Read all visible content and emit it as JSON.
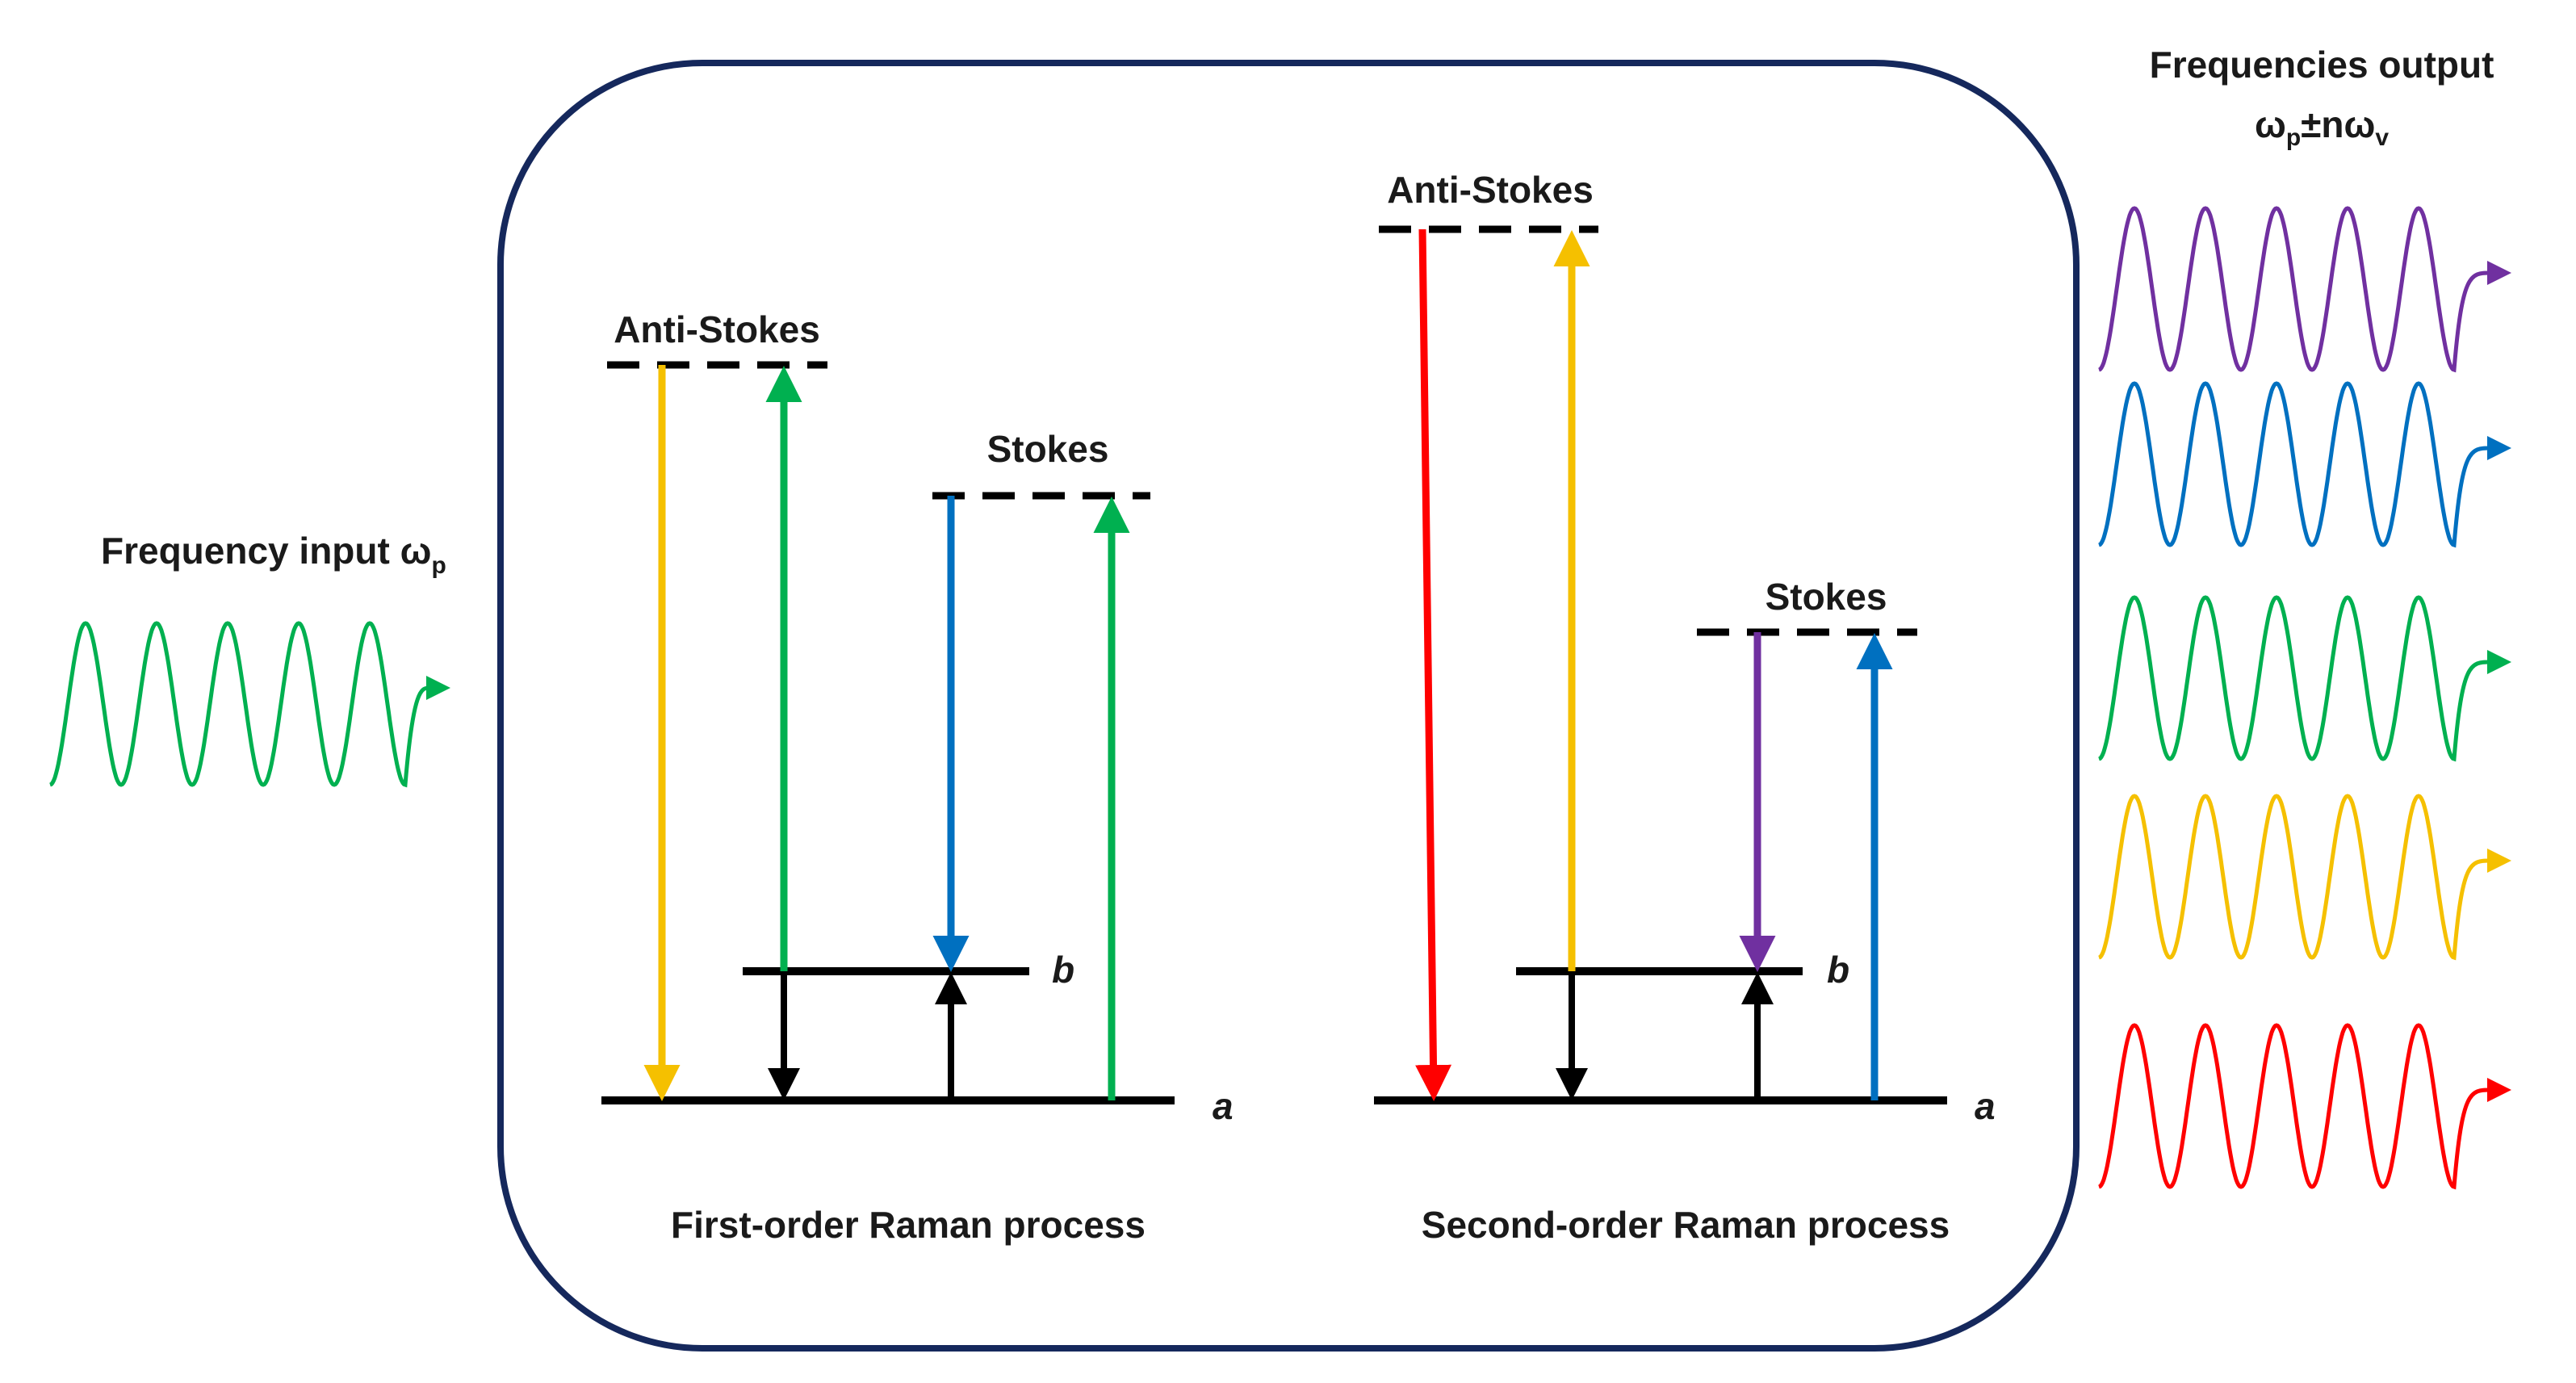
{
  "labels": {
    "input_prefix": "Frequency input ω",
    "input_sub": "p",
    "output_title": "Frequencies output",
    "output_a": "ω",
    "output_a_sub": "p",
    "output_mid": "±nω",
    "output_b_sub": "v",
    "anti_stokes_1": "Anti-Stokes",
    "stokes_1": "Stokes",
    "level_b_1": "b",
    "level_a_1": "a",
    "caption_1": "First-order Raman process",
    "anti_stokes_2": "Anti-Stokes",
    "stokes_2": "Stokes",
    "level_b_2": "b",
    "level_a_2": "a",
    "caption_2": "Second-order Raman process"
  },
  "colors": {
    "frame": "#15285c",
    "yellow": "#f5c000",
    "green": "#00b050",
    "blue": "#0070c0",
    "red": "#ff0000",
    "purple": "#7030a0",
    "black": "#000000"
  },
  "output_wave_colors": [
    "purple",
    "blue",
    "green",
    "yellow",
    "red"
  ]
}
